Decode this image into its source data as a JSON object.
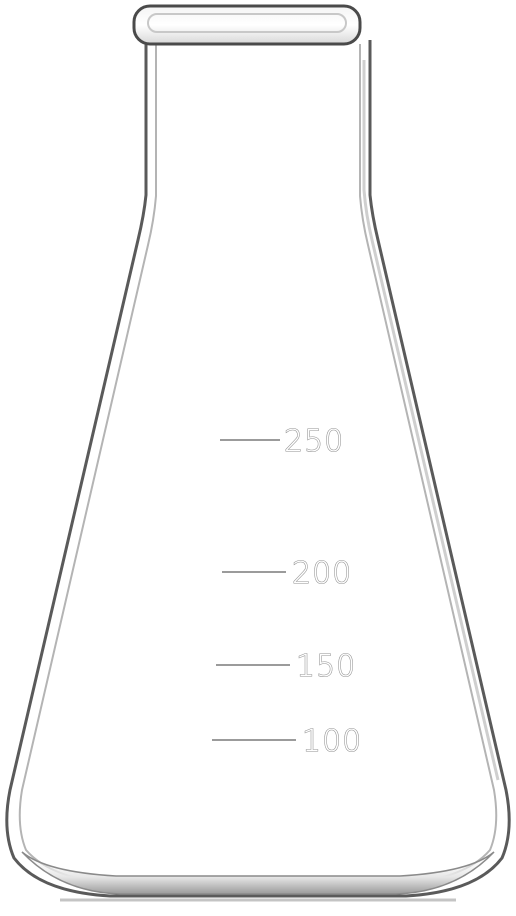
{
  "flask": {
    "graduations": [
      {
        "label": "250",
        "value": 250
      },
      {
        "label": "200",
        "value": 200
      },
      {
        "label": "150",
        "value": 150
      },
      {
        "label": "100",
        "value": 100
      }
    ]
  }
}
